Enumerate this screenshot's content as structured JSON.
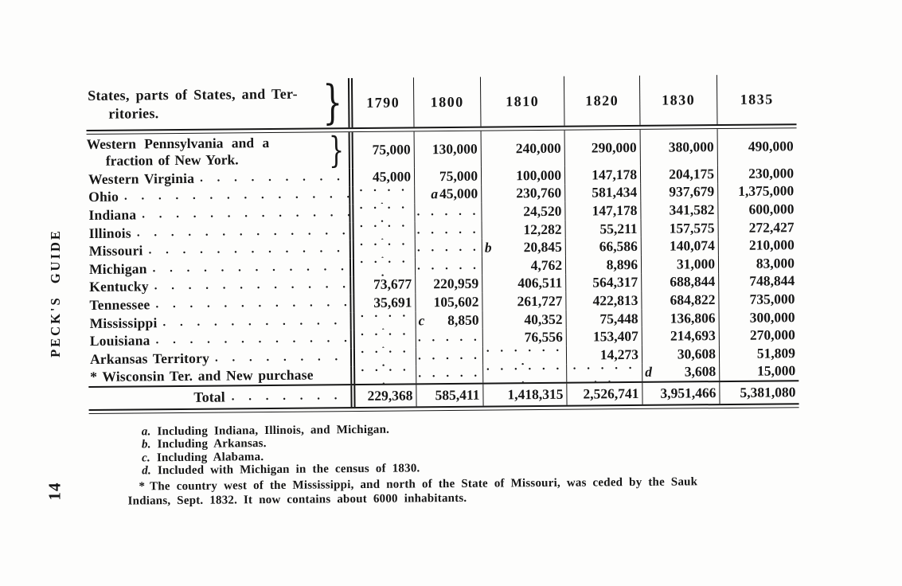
{
  "page": {
    "margin_label": "PECK'S GUIDE",
    "page_number": "14",
    "ink_color": "#161616",
    "paper_color": "#fdfdfc"
  },
  "table": {
    "header": {
      "label_line1": "States, parts of States, and Ter-",
      "label_line2": "ritories.",
      "brace": "}",
      "years": [
        "1790",
        "1800",
        "1810",
        "1820",
        "1830",
        "1835"
      ]
    },
    "leader": ". . . . . . . . . . . . . . . . . . . . . . . . . . . . . . . . . . . . . . . .",
    "rows": [
      {
        "label": "Western Pennsylvania and a",
        "label2": "fraction of New York.",
        "brace": "}",
        "cells": [
          "75,000",
          "130,000",
          "240,000",
          "290,000",
          "380,000",
          "490,000"
        ]
      },
      {
        "label": "Western Virginia",
        "cells": [
          "45,000",
          "75,000",
          "100,000",
          "147,178",
          "204,175",
          "230,000"
        ]
      },
      {
        "label": "Ohio",
        "cells": [
          ". . . . .",
          "a45,000",
          "230,760",
          "581,434",
          "937,679",
          "1,375,000"
        ]
      },
      {
        "label": "Indiana",
        "cells": [
          ". . . . .",
          ". . . . .",
          "24,520",
          "147,178",
          "341,582",
          "600,000"
        ]
      },
      {
        "label": "Illinois",
        "cells": [
          ". . . . .",
          ". . . . .",
          "12,282",
          "55,211",
          "157,575",
          "272,427"
        ]
      },
      {
        "label": "Missouri",
        "cells": [
          ". . . . .",
          ". . . . .",
          "b 20,845",
          "66,586",
          "140,074",
          "210,000"
        ]
      },
      {
        "label": "Michigan",
        "cells": [
          ". . . . .",
          ". . . . .",
          "4,762",
          "8,896",
          "31,000",
          "83,000"
        ]
      },
      {
        "label": "Kentucky",
        "cells": [
          "73,677",
          "220,959",
          "406,511",
          "564,317",
          "688,844",
          "748,844"
        ]
      },
      {
        "label": "Tennessee",
        "cells": [
          "35,691",
          "105,602",
          "261,727",
          "422,813",
          "684,822",
          "735,000"
        ]
      },
      {
        "label": "Mississippi",
        "cells": [
          ". . . . .",
          "c 8,850",
          "40,352",
          "75,448",
          "136,806",
          "300,000"
        ]
      },
      {
        "label": "Louisiana",
        "cells": [
          ". . . . .",
          ". . . . .",
          "76,556",
          "153,407",
          "214,693",
          "270,000"
        ]
      },
      {
        "label": "Arkansas Territory",
        "cells": [
          ". . . . .",
          ". . . . .",
          ". . . . . . .",
          "14,273",
          "30,608",
          "51,809"
        ]
      },
      {
        "label": "* Wisconsin Ter. and New purchase",
        "leader": false,
        "cells": [
          ". . . . .",
          ". . . . .",
          ". . . . . . .",
          ". . . . . . .",
          "d 3,608",
          "15,000"
        ]
      }
    ],
    "total": {
      "label": "Total",
      "dots": ". . . . . . .",
      "cells": [
        "229,368",
        "585,411",
        "1,418,315",
        "2,526,741",
        "3,951,466",
        "5,381,080"
      ]
    }
  },
  "footnotes": {
    "letters": [
      {
        "marker": "a.",
        "text": "Including Indiana, Illinois, and Michigan."
      },
      {
        "marker": "b.",
        "text": "Including Arkansas."
      },
      {
        "marker": "c.",
        "text": "Including Alabama."
      },
      {
        "marker": "d.",
        "text": "Included with Michigan in the census of 1830."
      }
    ],
    "star": {
      "marker": "*",
      "line1": "The country west of the Mississippi, and north of the State of Missouri, was ceded by the Sauk",
      "line2": "Indians, Sept. 1832.  It now contains about 6000 inhabitants."
    }
  }
}
